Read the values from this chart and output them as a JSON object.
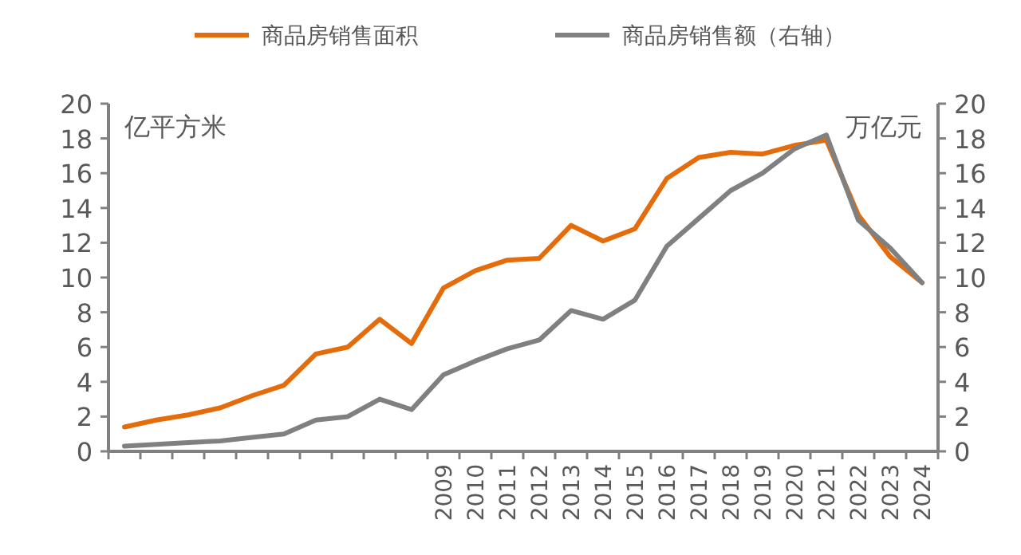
{
  "chart_data": {
    "type": "line",
    "ylabel": "亿平方米",
    "y2label": "万亿元",
    "categories": [
      null,
      null,
      null,
      null,
      null,
      null,
      null,
      null,
      null,
      null,
      "2009",
      "2010",
      "2011",
      "2012",
      "2013",
      "2014",
      "2015",
      "2016",
      "2017",
      "2018",
      "2019",
      "2020",
      "2021",
      "2022",
      "2023",
      "2024"
    ],
    "series": [
      {
        "name": "商品房销售面积",
        "color": "#e46c0a",
        "values": [
          1.4,
          1.8,
          2.1,
          2.5,
          3.2,
          3.8,
          5.6,
          6.0,
          7.6,
          6.2,
          9.4,
          10.4,
          11.0,
          11.1,
          13.0,
          12.1,
          12.8,
          15.7,
          16.9,
          17.2,
          17.1,
          17.6,
          17.9,
          13.6,
          11.2,
          9.7
        ]
      },
      {
        "name": "商品房销售额（右轴）",
        "color": "#808080",
        "axis": "y2",
        "values": [
          0.3,
          0.4,
          0.5,
          0.6,
          0.8,
          1.0,
          1.8,
          2.0,
          3.0,
          2.4,
          4.4,
          5.2,
          5.9,
          6.4,
          8.1,
          7.6,
          8.7,
          11.8,
          13.4,
          15.0,
          16.0,
          17.4,
          18.2,
          13.3,
          11.7,
          9.7
        ]
      }
    ],
    "ylim": [
      0,
      20
    ],
    "yticks": [
      0,
      2,
      4,
      6,
      8,
      10,
      12,
      14,
      16,
      18,
      20
    ],
    "y2lim": [
      0,
      20
    ],
    "y2ticks": [
      0,
      2,
      4,
      6,
      8,
      10,
      12,
      14,
      16,
      18,
      20
    ],
    "legend": "top",
    "grid": false,
    "marker": "none",
    "line_style": "solid"
  }
}
